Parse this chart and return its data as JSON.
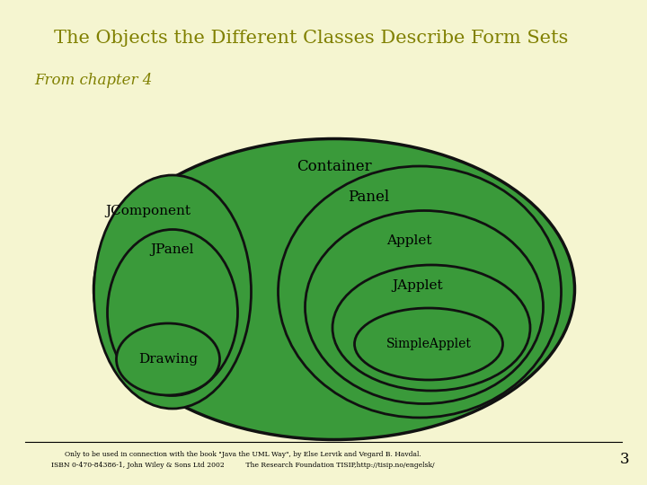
{
  "title": "The Objects the Different Classes Describe Form Sets",
  "subtitle": "From chapter 4",
  "background_color": "#f5f5d0",
  "title_color": "#808000",
  "title_fontsize": 15,
  "subtitle_fontsize": 12,
  "green_fill": "#3a9a3a",
  "outline_color": "#111111",
  "text_color": "#000000",
  "footer_line1": "Only to be used in connection with the book \"Java the UML Way\", by Else Lervik and Vegard B. Havdal.",
  "footer_line2": "ISBN 0-470-84386-1, John Wiley & Sons Ltd 2002          The Research Foundation TISIP,http://tisip.no/engelsk/",
  "footer_page": "3"
}
